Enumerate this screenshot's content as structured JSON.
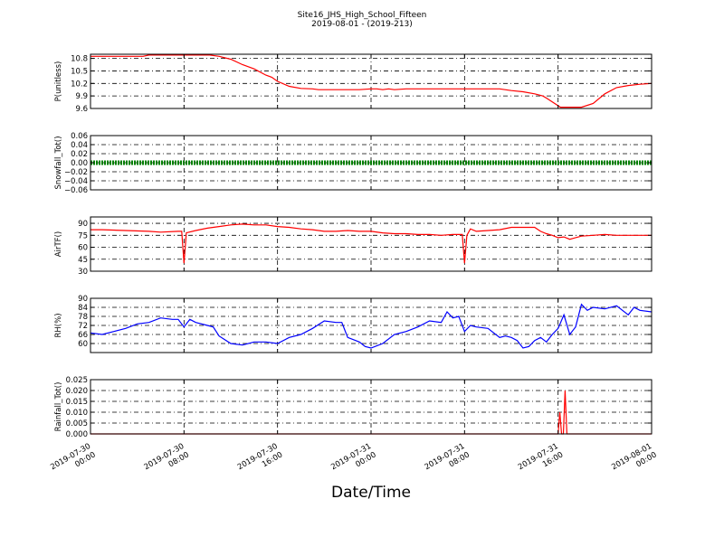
{
  "figure": {
    "title": "Site16_JHS_High_School_Fifteen",
    "subtitle": "2019-08-01 - (2019-213)",
    "xlabel": "Date/Time",
    "x_ticks": [
      {
        "pos": 0,
        "line1": "2019-07-30",
        "line2": "00:00"
      },
      {
        "pos": 8,
        "line1": "2019-07-30",
        "line2": "08:00"
      },
      {
        "pos": 16,
        "line1": "2019-07-30",
        "line2": "16:00"
      },
      {
        "pos": 24,
        "line1": "2019-07-31",
        "line2": "00:00"
      },
      {
        "pos": 32,
        "line1": "2019-07-31",
        "line2": "08:00"
      },
      {
        "pos": 40,
        "line1": "2019-07-31",
        "line2": "16:00"
      },
      {
        "pos": 48,
        "line1": "2019-08-01",
        "line2": "00:00"
      }
    ],
    "x_range_hours": [
      0,
      48
    ]
  },
  "chart_data": [
    {
      "type": "line",
      "ylabel": "P(unitless)",
      "color": "#ff0000",
      "ylim": [
        9.6,
        10.9
      ],
      "yticks": [
        "9.6",
        "9.9",
        "10.2",
        "10.5",
        "10.8"
      ],
      "ytick_values": [
        9.6,
        9.9,
        10.2,
        10.5,
        10.8
      ],
      "x": [
        0,
        4.5,
        5,
        10.2,
        11,
        12,
        13,
        14,
        15,
        15.5,
        16,
        17,
        18,
        19,
        19.5,
        21,
        23,
        24,
        24.5,
        25,
        25.5,
        26,
        27,
        30,
        33,
        34.5,
        35,
        36,
        37,
        38,
        38.3,
        38.7,
        39,
        40.2,
        40.5,
        41,
        41.5,
        42,
        43,
        44,
        45,
        46,
        47,
        48
      ],
      "y": [
        10.85,
        10.85,
        10.88,
        10.88,
        10.85,
        10.78,
        10.65,
        10.55,
        10.4,
        10.35,
        10.25,
        10.13,
        10.08,
        10.07,
        10.05,
        10.05,
        10.05,
        10.07,
        10.07,
        10.05,
        10.07,
        10.05,
        10.07,
        10.07,
        10.07,
        10.07,
        10.07,
        10.03,
        10.0,
        9.95,
        9.93,
        9.9,
        9.85,
        9.63,
        9.63,
        9.63,
        9.63,
        9.63,
        9.72,
        9.95,
        10.1,
        10.15,
        10.18,
        10.2
      ]
    },
    {
      "type": "line",
      "ylabel": "Snowfall_Tot()",
      "color": "#008000",
      "ylim": [
        -0.06,
        0.06
      ],
      "yticks": [
        "−0.06",
        "−0.04",
        "−0.02",
        "0.00",
        "0.02",
        "0.04",
        "0.06"
      ],
      "ytick_values": [
        -0.06,
        -0.04,
        -0.02,
        0.0,
        0.02,
        0.04,
        0.06
      ],
      "x": [
        0,
        48
      ],
      "y": [
        0,
        0
      ]
    },
    {
      "type": "line",
      "ylabel": "AirTF()",
      "color": "#ff0000",
      "ylim": [
        30,
        98
      ],
      "yticks": [
        "30",
        "45",
        "60",
        "75",
        "90"
      ],
      "ytick_values": [
        30,
        45,
        60,
        75,
        90
      ],
      "x": [
        0,
        1,
        3,
        5,
        6,
        7.5,
        7.8,
        8.0,
        8.2,
        9,
        10,
        11,
        12,
        13,
        14,
        15,
        16,
        17,
        18,
        19,
        20,
        21,
        22,
        23,
        24,
        25,
        26,
        27,
        28,
        29,
        30,
        31,
        31.5,
        31.8,
        32.0,
        32.2,
        32.5,
        33,
        34,
        35,
        36,
        37,
        38,
        38.5,
        39,
        39.5,
        40,
        40.5,
        41,
        41.5,
        42,
        43,
        44,
        45,
        46,
        47,
        48
      ],
      "y": [
        82,
        82,
        81,
        80,
        79,
        80,
        80,
        40,
        78,
        81,
        84,
        86,
        88,
        89,
        88,
        88,
        86,
        85,
        83,
        82,
        80,
        80,
        81,
        80,
        80,
        78,
        77,
        77,
        76,
        76,
        75,
        76,
        76,
        76,
        40,
        75,
        83,
        80,
        81,
        82,
        85,
        85,
        85,
        80,
        77,
        75,
        72,
        73,
        70,
        72,
        74,
        75,
        76,
        75,
        75,
        75,
        75
      ]
    },
    {
      "type": "line",
      "ylabel": "RH(%)",
      "color": "#0000ff",
      "ylim": [
        54,
        90
      ],
      "yticks": [
        "60",
        "66",
        "72",
        "78",
        "84",
        "90"
      ],
      "ytick_values": [
        60,
        66,
        72,
        78,
        84,
        90
      ],
      "x": [
        0,
        1,
        2,
        3,
        4,
        5,
        6,
        7,
        7.5,
        8,
        8.5,
        9,
        10,
        10.5,
        11,
        12,
        13,
        14,
        15,
        16,
        17,
        18,
        19,
        20,
        21,
        21.5,
        22,
        23,
        23.5,
        24,
        25,
        26,
        27,
        28,
        29,
        30,
        30.5,
        31,
        31.5,
        32,
        32.5,
        33,
        34,
        35,
        35.5,
        36,
        36.5,
        37,
        37.5,
        38,
        38.5,
        39,
        39.5,
        40,
        40.5,
        41,
        41.5,
        42,
        42.5,
        43,
        44,
        45,
        46,
        46.5,
        47,
        48
      ],
      "y": [
        67,
        66,
        68,
        70,
        73,
        74,
        77,
        76,
        76,
        71,
        76,
        74,
        72,
        71,
        65,
        60,
        59,
        61,
        61,
        60,
        64,
        66,
        70,
        75,
        74,
        74,
        64,
        61,
        58,
        57,
        60,
        66,
        68,
        71,
        75,
        74,
        81,
        77,
        78,
        68,
        72,
        71,
        70,
        64,
        65,
        64,
        62,
        57,
        58,
        62,
        64,
        61,
        66,
        70,
        79,
        66,
        71,
        86,
        82,
        84,
        83,
        85,
        79,
        84,
        82,
        81
      ]
    },
    {
      "type": "line",
      "ylabel": "Rainfall_Tot()",
      "color": "#ff0000",
      "ylim": [
        0,
        0.025
      ],
      "yticks": [
        "0.000",
        "0.005",
        "0.010",
        "0.015",
        "0.020",
        "0.025"
      ],
      "ytick_values": [
        0,
        0.005,
        0.01,
        0.015,
        0.02,
        0.025
      ],
      "x": [
        0,
        40.0,
        40.15,
        40.3,
        40.45,
        40.6,
        40.75,
        40.9,
        41.0,
        48
      ],
      "y": [
        0,
        0,
        0.01,
        0,
        0,
        0.02,
        0,
        0,
        0,
        0
      ]
    }
  ]
}
